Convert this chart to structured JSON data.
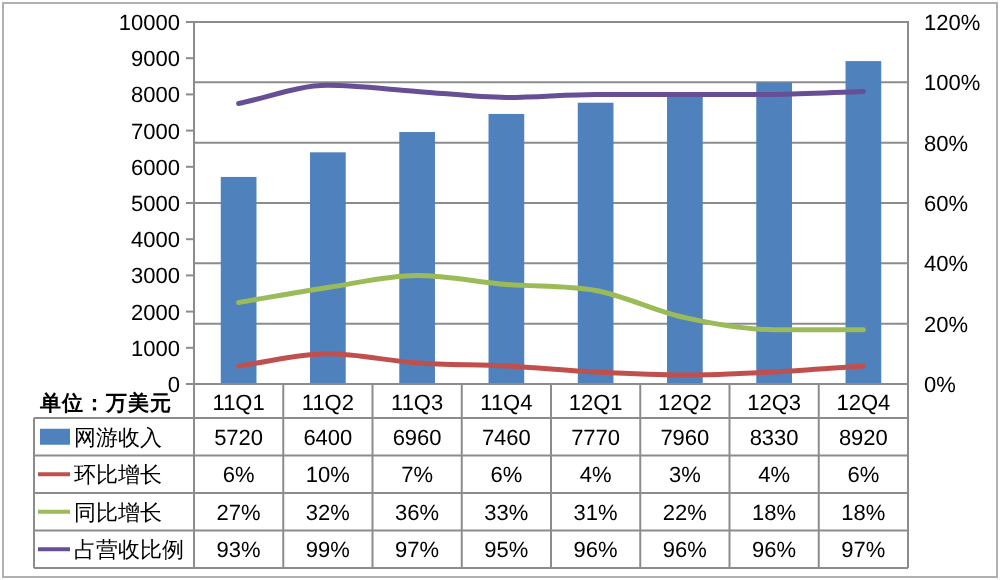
{
  "chart_data": {
    "type": "bar",
    "categories": [
      "11Q1",
      "11Q2",
      "11Q3",
      "11Q4",
      "12Q1",
      "12Q2",
      "12Q3",
      "12Q4"
    ],
    "series": [
      {
        "name": "网游收入",
        "color": "#4f81bd",
        "values": [
          5720,
          6400,
          6960,
          7460,
          7770,
          7960,
          8330,
          8920
        ],
        "value_labels": [
          "5720",
          "6400",
          "6960",
          "7460",
          "7770",
          "7960",
          "8330",
          "8920"
        ]
      },
      {
        "name": "环比增长",
        "type": "line",
        "axis": "y2",
        "color": "#c0504d",
        "values": [
          6,
          10,
          7,
          6,
          4,
          3,
          4,
          6
        ],
        "value_labels": [
          "6%",
          "10%",
          "7%",
          "6%",
          "4%",
          "3%",
          "4%",
          "6%"
        ]
      },
      {
        "name": "同比增长",
        "type": "line",
        "axis": "y2",
        "color": "#9bbb59",
        "values": [
          27,
          32,
          36,
          33,
          31,
          22,
          18,
          18
        ],
        "value_labels": [
          "27%",
          "32%",
          "36%",
          "33%",
          "31%",
          "22%",
          "18%",
          "18%"
        ]
      },
      {
        "name": "占营收比例",
        "type": "line",
        "axis": "y2",
        "color": "#674f96",
        "values": [
          93,
          99,
          97,
          95,
          96,
          96,
          96,
          97
        ],
        "value_labels": [
          "93%",
          "99%",
          "97%",
          "95%",
          "96%",
          "96%",
          "96%",
          "97%"
        ]
      }
    ],
    "ylim": [
      0,
      10000
    ],
    "yticks": [
      0,
      1000,
      2000,
      3000,
      4000,
      5000,
      6000,
      7000,
      8000,
      9000,
      10000
    ],
    "y2lim": [
      0,
      120
    ],
    "y2ticks": [
      {
        "value": 0,
        "label": "0%"
      },
      {
        "value": 20,
        "label": "20%"
      },
      {
        "value": 40,
        "label": "40%"
      },
      {
        "value": 60,
        "label": "60%"
      },
      {
        "value": 80,
        "label": "80%"
      },
      {
        "value": 100,
        "label": "100%"
      },
      {
        "value": 120,
        "label": "120%"
      }
    ],
    "grid": "y2",
    "legend": "bottom",
    "annotations": [
      "单位：万美元"
    ]
  }
}
